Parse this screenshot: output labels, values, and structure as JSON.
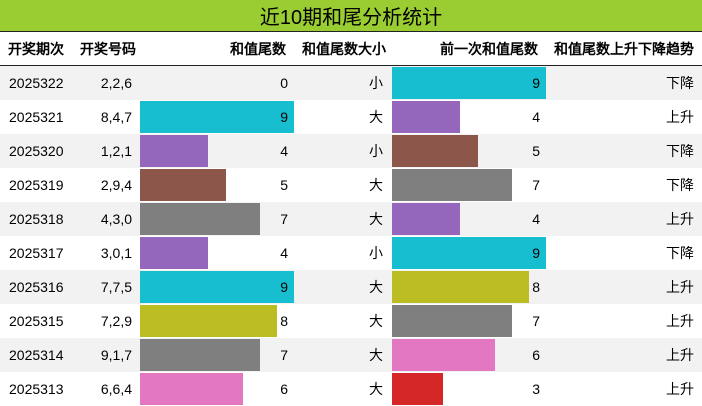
{
  "title": "近10期和尾分析统计",
  "headers": {
    "period": "开奖期次",
    "numbers": "开奖号码",
    "sum_tail": "和值尾数",
    "size": "和值尾数大小",
    "prev_tail": "前一次和值尾数",
    "trend": "和值尾数上升下降趋势"
  },
  "bar_max": 9,
  "rows": [
    {
      "period": "2025322",
      "numbers": "2,2,6",
      "sum_tail": 0,
      "sum_color": "#ffffff",
      "size": "小",
      "prev_tail": 9,
      "prev_color": "#17becf",
      "trend": "下降"
    },
    {
      "period": "2025321",
      "numbers": "8,4,7",
      "sum_tail": 9,
      "sum_color": "#17becf",
      "size": "大",
      "prev_tail": 4,
      "prev_color": "#9467bd",
      "trend": "上升"
    },
    {
      "period": "2025320",
      "numbers": "1,2,1",
      "sum_tail": 4,
      "sum_color": "#9467bd",
      "size": "小",
      "prev_tail": 5,
      "prev_color": "#8c564b",
      "trend": "下降"
    },
    {
      "period": "2025319",
      "numbers": "2,9,4",
      "sum_tail": 5,
      "sum_color": "#8c564b",
      "size": "大",
      "prev_tail": 7,
      "prev_color": "#7f7f7f",
      "trend": "下降"
    },
    {
      "period": "2025318",
      "numbers": "4,3,0",
      "sum_tail": 7,
      "sum_color": "#7f7f7f",
      "size": "大",
      "prev_tail": 4,
      "prev_color": "#9467bd",
      "trend": "上升"
    },
    {
      "period": "2025317",
      "numbers": "3,0,1",
      "sum_tail": 4,
      "sum_color": "#9467bd",
      "size": "小",
      "prev_tail": 9,
      "prev_color": "#17becf",
      "trend": "下降"
    },
    {
      "period": "2025316",
      "numbers": "7,7,5",
      "sum_tail": 9,
      "sum_color": "#17becf",
      "size": "大",
      "prev_tail": 8,
      "prev_color": "#bcbd22",
      "trend": "上升"
    },
    {
      "period": "2025315",
      "numbers": "7,2,9",
      "sum_tail": 8,
      "sum_color": "#bcbd22",
      "size": "大",
      "prev_tail": 7,
      "prev_color": "#7f7f7f",
      "trend": "上升"
    },
    {
      "period": "2025314",
      "numbers": "9,1,7",
      "sum_tail": 7,
      "sum_color": "#7f7f7f",
      "size": "大",
      "prev_tail": 6,
      "prev_color": "#e377c2",
      "trend": "上升"
    },
    {
      "period": "2025313",
      "numbers": "6,6,4",
      "sum_tail": 6,
      "sum_color": "#e377c2",
      "size": "大",
      "prev_tail": 3,
      "prev_color": "#d62728",
      "trend": "上升"
    }
  ]
}
